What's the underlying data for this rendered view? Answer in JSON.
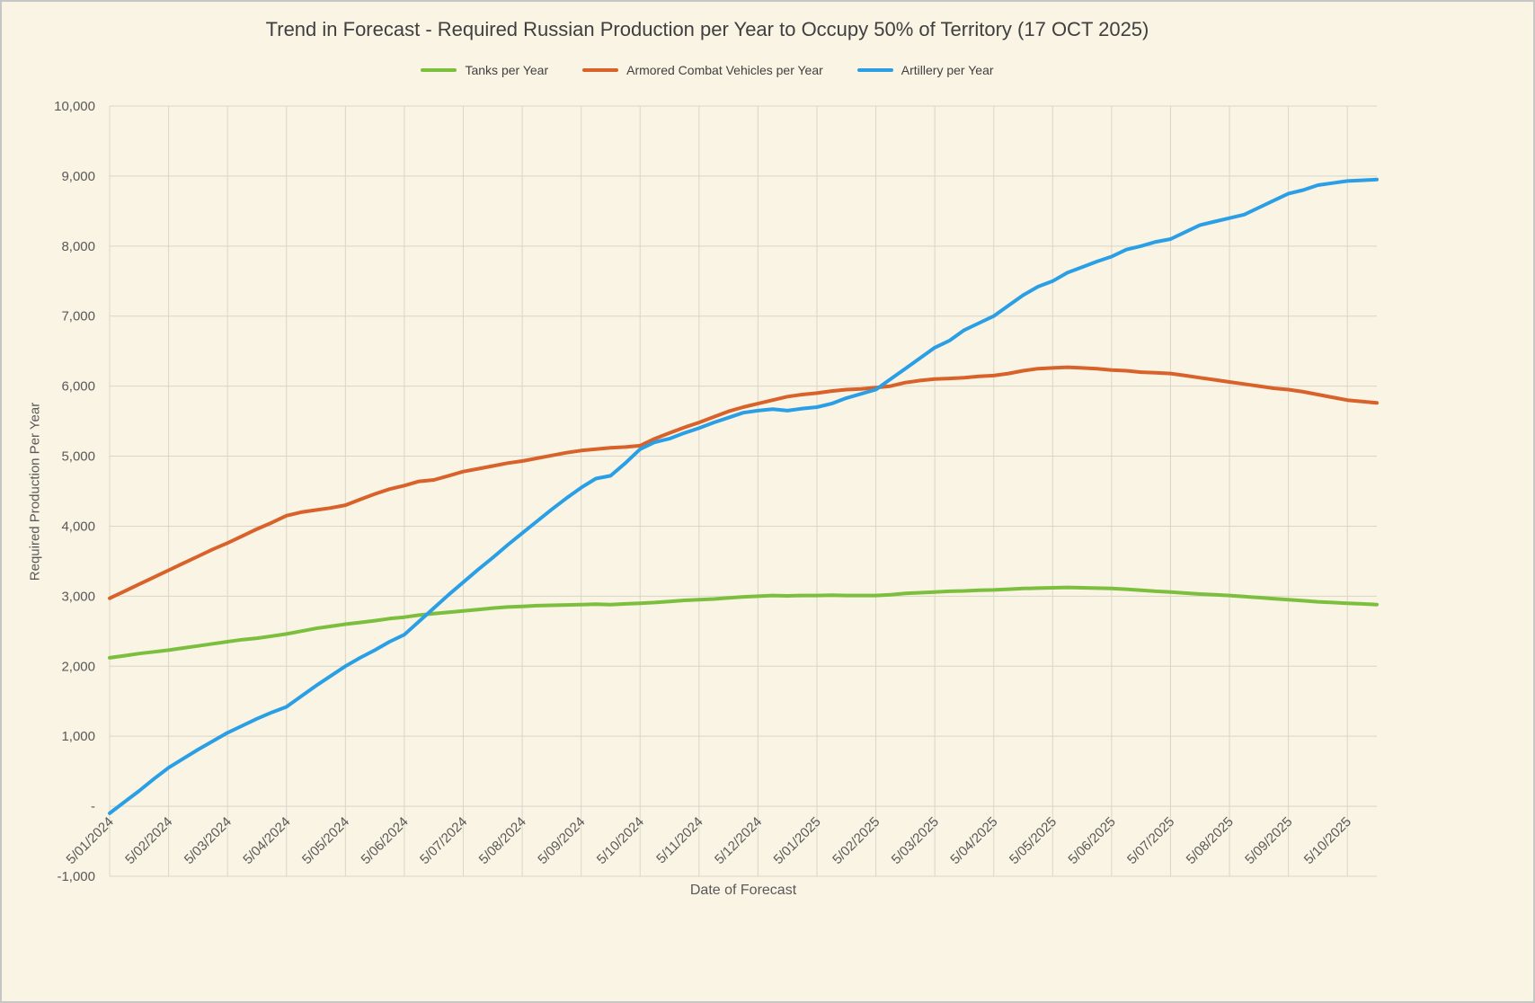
{
  "chart_data": {
    "type": "line",
    "title": "Trend in Forecast - Required Russian Production per Year to Occupy 50% of Territory (17 OCT 2025)",
    "xlabel": "Date of Forecast",
    "ylabel": "Required Production Per Year",
    "ylim": [
      -1000,
      10000
    ],
    "ytick_step": 1000,
    "ytick_zero_label": "-",
    "grid": true,
    "legend_position": "top",
    "categories": [
      "5/01/2024",
      "5/02/2024",
      "5/03/2024",
      "5/04/2024",
      "5/05/2024",
      "5/06/2024",
      "5/07/2024",
      "5/08/2024",
      "5/09/2024",
      "5/10/2024",
      "5/11/2024",
      "5/12/2024",
      "5/01/2025",
      "5/02/2025",
      "5/03/2025",
      "5/04/2025",
      "5/05/2025",
      "5/06/2025",
      "5/07/2025",
      "5/08/2025",
      "5/09/2025",
      "5/10/2025"
    ],
    "x_step": 0.25,
    "x_max": 21.5,
    "series": [
      {
        "name": "Tanks per Year",
        "color": "#7cbf3f",
        "values": [
          2120,
          2150,
          2180,
          2205,
          2230,
          2260,
          2290,
          2320,
          2350,
          2380,
          2400,
          2430,
          2460,
          2500,
          2540,
          2570,
          2600,
          2625,
          2650,
          2680,
          2700,
          2730,
          2750,
          2770,
          2790,
          2810,
          2830,
          2845,
          2855,
          2865,
          2870,
          2875,
          2880,
          2885,
          2880,
          2890,
          2900,
          2910,
          2925,
          2940,
          2950,
          2960,
          2975,
          2990,
          3000,
          3010,
          3005,
          3010,
          3010,
          3015,
          3010,
          3010,
          3010,
          3020,
          3040,
          3050,
          3060,
          3070,
          3075,
          3085,
          3090,
          3100,
          3110,
          3115,
          3120,
          3125,
          3120,
          3115,
          3110,
          3100,
          3085,
          3070,
          3060,
          3045,
          3030,
          3020,
          3010,
          2995,
          2980,
          2965,
          2950,
          2935,
          2920,
          2910,
          2900,
          2890,
          2880
        ]
      },
      {
        "name": "Armored Combat Vehicles per Year",
        "color": "#d9622b",
        "values": [
          2970,
          3070,
          3170,
          3270,
          3370,
          3470,
          3570,
          3670,
          3760,
          3860,
          3960,
          4050,
          4150,
          4200,
          4230,
          4260,
          4300,
          4380,
          4460,
          4530,
          4580,
          4640,
          4660,
          4720,
          4780,
          4820,
          4860,
          4900,
          4930,
          4970,
          5010,
          5050,
          5080,
          5100,
          5120,
          5130,
          5150,
          5250,
          5330,
          5410,
          5480,
          5560,
          5640,
          5700,
          5750,
          5800,
          5850,
          5880,
          5900,
          5930,
          5950,
          5960,
          5980,
          6000,
          6050,
          6080,
          6100,
          6110,
          6120,
          6140,
          6150,
          6180,
          6220,
          6250,
          6260,
          6270,
          6260,
          6250,
          6230,
          6220,
          6200,
          6190,
          6180,
          6150,
          6120,
          6090,
          6060,
          6030,
          6000,
          5970,
          5950,
          5920,
          5880,
          5840,
          5800,
          5780,
          5760
        ]
      },
      {
        "name": "Artillery per Year",
        "color": "#2b9fe5",
        "values": [
          -100,
          60,
          220,
          390,
          550,
          680,
          810,
          930,
          1050,
          1150,
          1250,
          1340,
          1420,
          1570,
          1720,
          1860,
          2000,
          2120,
          2230,
          2350,
          2450,
          2640,
          2830,
          3020,
          3200,
          3380,
          3550,
          3730,
          3900,
          4070,
          4240,
          4400,
          4550,
          4680,
          4720,
          4900,
          5100,
          5200,
          5250,
          5330,
          5400,
          5480,
          5550,
          5620,
          5650,
          5670,
          5650,
          5680,
          5700,
          5750,
          5830,
          5890,
          5950,
          6100,
          6250,
          6400,
          6550,
          6650,
          6800,
          6900,
          7000,
          7150,
          7300,
          7420,
          7500,
          7620,
          7700,
          7780,
          7850,
          7950,
          8000,
          8060,
          8100,
          8200,
          8300,
          8350,
          8400,
          8450,
          8550,
          8650,
          8750,
          8800,
          8870,
          8900,
          8930,
          8940,
          8950
        ]
      }
    ],
    "colors": {
      "background": "#faf4e4",
      "gridline": "#d9d6c8",
      "tick_label": "#595959",
      "title": "#3f3f3f"
    }
  }
}
